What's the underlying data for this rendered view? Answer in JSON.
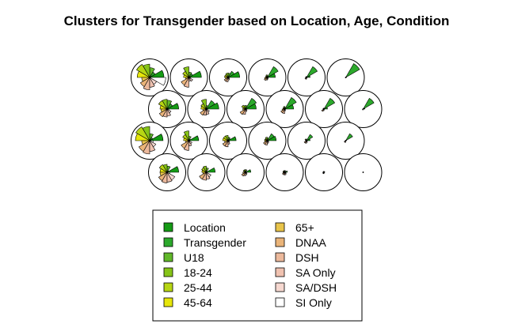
{
  "chart_data": {
    "type": "segments",
    "title": "Clusters for Transgender based on Location, Age, Condition",
    "variables": [
      "Location",
      "Transgender",
      "U18",
      "18-24",
      "25-44",
      "45-64",
      "65+",
      "DNAA",
      "DSH",
      "SA Only",
      "SA/DSH",
      "SI Only"
    ],
    "colors": [
      "#159b15",
      "#2ca92c",
      "#61b82a",
      "#86c418",
      "#b7d614",
      "#e6e60a",
      "#e8c44a",
      "#eab479",
      "#ecb99c",
      "#f0c2b0",
      "#f6d8d0",
      "#ffffff"
    ],
    "grid": {
      "rows": 4,
      "cols": 6
    },
    "units": [
      [
        0.8,
        0.35,
        0.55,
        0.75,
        0.85,
        0.7,
        0.45,
        0.6,
        0.7,
        0.55,
        0.45,
        0.9
      ],
      [
        0.7,
        0.25,
        0.3,
        0.6,
        0.4,
        0.3,
        0.2,
        0.5,
        0.55,
        0.2,
        0.25,
        0.1
      ],
      [
        0.65,
        0.4,
        0.25,
        0.25,
        0.2,
        0.2,
        0.15,
        0.25,
        0.25,
        0.15,
        0.1,
        0.05
      ],
      [
        0.45,
        0.7,
        0.1,
        0.15,
        0.1,
        0.1,
        0.15,
        0.2,
        0.15,
        0.1,
        0.05,
        0.05
      ],
      [
        0.2,
        0.7,
        0.05,
        0.05,
        0.05,
        0.05,
        0.05,
        0.1,
        0.1,
        0.05,
        0.0,
        0.0
      ],
      [
        0.05,
        0.9,
        0.02,
        0.02,
        0.02,
        0.02,
        0.02,
        0.02,
        0.02,
        0.02,
        0.0,
        0.0
      ],
      [
        0.65,
        0.35,
        0.5,
        0.55,
        0.55,
        0.4,
        0.35,
        0.5,
        0.45,
        0.4,
        0.25,
        0.1
      ],
      [
        0.7,
        0.55,
        0.2,
        0.55,
        0.35,
        0.3,
        0.2,
        0.4,
        0.35,
        0.3,
        0.2,
        0.05
      ],
      [
        0.6,
        0.7,
        0.2,
        0.2,
        0.25,
        0.15,
        0.15,
        0.35,
        0.3,
        0.15,
        0.1,
        0.05
      ],
      [
        0.5,
        0.75,
        0.1,
        0.15,
        0.1,
        0.1,
        0.15,
        0.25,
        0.25,
        0.1,
        0.05,
        0.0
      ],
      [
        0.2,
        0.7,
        0.05,
        0.05,
        0.05,
        0.05,
        0.05,
        0.15,
        0.1,
        0.05,
        0.0,
        0.0
      ],
      [
        0.1,
        0.7,
        0.02,
        0.02,
        0.02,
        0.02,
        0.02,
        0.05,
        0.05,
        0.02,
        0.0,
        0.0
      ],
      [
        0.75,
        0.2,
        0.4,
        0.8,
        0.9,
        0.8,
        0.45,
        0.7,
        0.75,
        0.6,
        0.4,
        0.2
      ],
      [
        0.55,
        0.1,
        0.25,
        0.55,
        0.4,
        0.3,
        0.2,
        0.5,
        0.55,
        0.3,
        0.2,
        0.05
      ],
      [
        0.45,
        0.15,
        0.2,
        0.3,
        0.3,
        0.3,
        0.2,
        0.35,
        0.35,
        0.2,
        0.1,
        0.05
      ],
      [
        0.5,
        0.45,
        0.15,
        0.2,
        0.15,
        0.15,
        0.15,
        0.25,
        0.25,
        0.15,
        0.1,
        0.05
      ],
      [
        0.2,
        0.4,
        0.05,
        0.1,
        0.1,
        0.05,
        0.05,
        0.15,
        0.15,
        0.1,
        0.05,
        0.0
      ],
      [
        0.05,
        0.45,
        0.02,
        0.02,
        0.02,
        0.02,
        0.02,
        0.1,
        0.1,
        0.02,
        0.0,
        0.0
      ],
      [
        0.65,
        0.1,
        0.35,
        0.45,
        0.5,
        0.4,
        0.4,
        0.55,
        0.6,
        0.55,
        0.5,
        0.15
      ],
      [
        0.5,
        0.05,
        0.25,
        0.35,
        0.3,
        0.25,
        0.2,
        0.45,
        0.45,
        0.4,
        0.3,
        0.05
      ],
      [
        0.3,
        0.05,
        0.15,
        0.15,
        0.15,
        0.1,
        0.15,
        0.25,
        0.2,
        0.15,
        0.1,
        0.05
      ],
      [
        0.15,
        0.02,
        0.1,
        0.1,
        0.1,
        0.1,
        0.1,
        0.15,
        0.15,
        0.15,
        0.1,
        0.05
      ],
      [
        0.05,
        0.02,
        0.05,
        0.05,
        0.05,
        0.05,
        0.05,
        0.08,
        0.08,
        0.05,
        0.02,
        0.02
      ],
      [
        0.02,
        0.0,
        0.02,
        0.02,
        0.02,
        0.02,
        0.02,
        0.02,
        0.02,
        0.02,
        0.0,
        0.0
      ]
    ]
  }
}
